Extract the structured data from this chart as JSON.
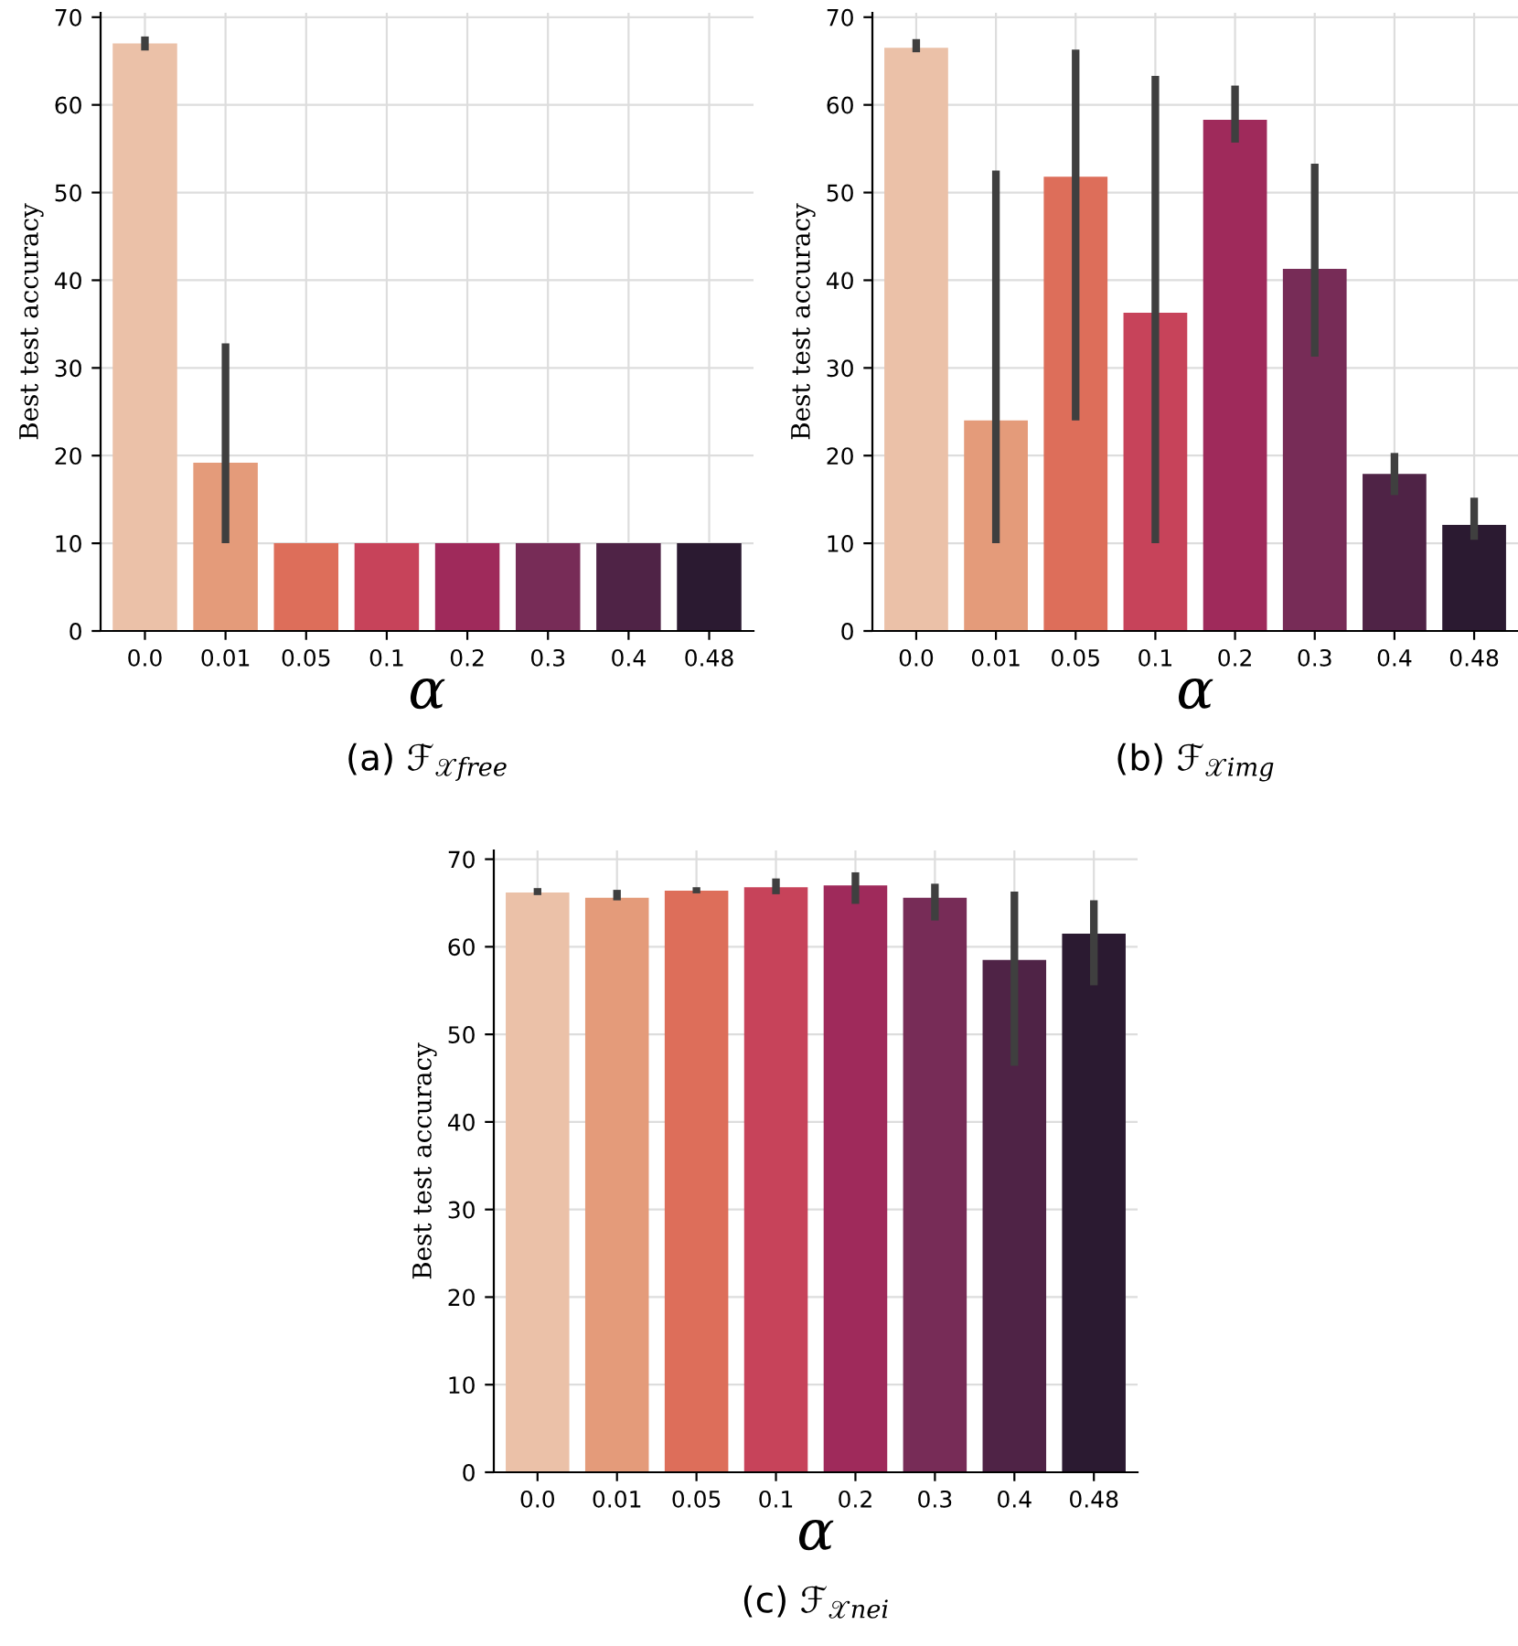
{
  "chart_data": [
    {
      "type": "bar",
      "title": "(a) ℱ$_{𝒳free}$",
      "xlabel": "α",
      "ylabel": "Best test accuracy",
      "categories": [
        "0.0",
        "0.01",
        "0.05",
        "0.1",
        "0.2",
        "0.3",
        "0.4",
        "0.48"
      ],
      "values": [
        67,
        19.2,
        10,
        10,
        10,
        10,
        10,
        10
      ],
      "errors": [
        [
          66.2,
          67.8
        ],
        [
          10,
          32.8
        ],
        null,
        null,
        null,
        null,
        null,
        null
      ],
      "colors": [
        "#ebc1a8",
        "#e49b7a",
        "#dd6e5a",
        "#c7435a",
        "#9f2a5b",
        "#772c57",
        "#4f2346",
        "#2b1a31"
      ],
      "ylim": [
        0,
        70.5
      ],
      "yticks": [
        0,
        10,
        20,
        30,
        40,
        50,
        60,
        70
      ],
      "grid": true
    },
    {
      "type": "bar",
      "title": "(b) ℱ$_{𝒳img}$",
      "xlabel": "α",
      "ylabel": "Best test accuracy",
      "categories": [
        "0.0",
        "0.01",
        "0.05",
        "0.1",
        "0.2",
        "0.3",
        "0.4",
        "0.48"
      ],
      "values": [
        66.5,
        24,
        51.8,
        36.3,
        58.3,
        41.3,
        17.9,
        12.1
      ],
      "errors": [
        [
          66,
          67.5
        ],
        [
          10,
          52.5
        ],
        [
          24,
          66.3
        ],
        [
          10,
          63.3
        ],
        [
          55.7,
          62.2
        ],
        [
          31.3,
          53.3
        ],
        [
          15.5,
          20.3
        ],
        [
          10.4,
          15.2
        ]
      ],
      "colors": [
        "#ebc1a8",
        "#e49b7a",
        "#dd6e5a",
        "#c7435a",
        "#9f2a5b",
        "#772c57",
        "#4f2346",
        "#2b1a31"
      ],
      "ylim": [
        0,
        70.5
      ],
      "yticks": [
        0,
        10,
        20,
        30,
        40,
        50,
        60,
        70
      ],
      "grid": true
    },
    {
      "type": "bar",
      "title": "(c) ℱ$_{𝒳nei}$",
      "xlabel": "α",
      "ylabel": "Best test accuracy",
      "categories": [
        "0.0",
        "0.01",
        "0.05",
        "0.1",
        "0.2",
        "0.3",
        "0.4",
        "0.48"
      ],
      "values": [
        66.2,
        65.6,
        66.4,
        66.8,
        67,
        65.6,
        58.5,
        61.5
      ],
      "errors": [
        [
          65.9,
          66.7
        ],
        [
          65.3,
          66.5
        ],
        [
          66.1,
          66.8
        ],
        [
          66,
          67.8
        ],
        [
          64.9,
          68.5
        ],
        [
          63,
          67.2
        ],
        [
          46.4,
          66.3
        ],
        [
          55.6,
          65.3
        ]
      ],
      "colors": [
        "#ebc1a8",
        "#e49b7a",
        "#dd6e5a",
        "#c7435a",
        "#9f2a5b",
        "#772c57",
        "#4f2346",
        "#2b1a31"
      ],
      "ylim": [
        0,
        71
      ],
      "yticks": [
        0,
        10,
        20,
        30,
        40,
        50,
        60,
        70
      ],
      "grid": true
    }
  ]
}
